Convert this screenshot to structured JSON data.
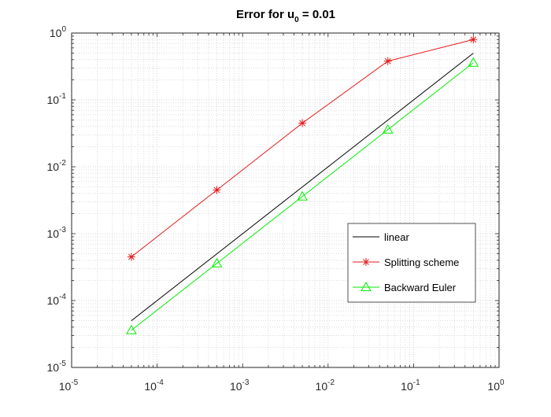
{
  "chart_data": {
    "type": "line",
    "title": {
      "prefix": "Error for u",
      "subscript": "0",
      "suffix": " = 0.01"
    },
    "xlabel": "",
    "ylabel": "",
    "xscale": "log",
    "yscale": "log",
    "xlim": [
      1e-05,
      1
    ],
    "ylim": [
      1e-05,
      1
    ],
    "grid": true,
    "minor_grid": true,
    "x_ticks": [
      {
        "base": "10",
        "exp": "-5",
        "value": 1e-05
      },
      {
        "base": "10",
        "exp": "-4",
        "value": 0.0001
      },
      {
        "base": "10",
        "exp": "-3",
        "value": 0.001
      },
      {
        "base": "10",
        "exp": "-2",
        "value": 0.01
      },
      {
        "base": "10",
        "exp": "-1",
        "value": 0.1
      },
      {
        "base": "10",
        "exp": "0",
        "value": 1
      }
    ],
    "y_ticks": [
      {
        "base": "10",
        "exp": "-5",
        "value": 1e-05
      },
      {
        "base": "10",
        "exp": "-4",
        "value": 0.0001
      },
      {
        "base": "10",
        "exp": "-3",
        "value": 0.001
      },
      {
        "base": "10",
        "exp": "-2",
        "value": 0.01
      },
      {
        "base": "10",
        "exp": "-1",
        "value": 0.1
      },
      {
        "base": "10",
        "exp": "0",
        "value": 1
      }
    ],
    "legend_position": "lower-right",
    "series": [
      {
        "name": "linear",
        "color": "#000000",
        "marker": "none",
        "x": [
          5e-05,
          0.0005,
          0.005,
          0.05,
          0.5
        ],
        "y": [
          5e-05,
          0.0005,
          0.005,
          0.05,
          0.5
        ]
      },
      {
        "name": "Splitting scheme",
        "color": "#e31a1c",
        "marker": "asterisk",
        "x": [
          5e-05,
          0.0005,
          0.005,
          0.05,
          0.5
        ],
        "y": [
          0.00045,
          0.0045,
          0.045,
          0.38,
          0.8
        ]
      },
      {
        "name": "Backward Euler",
        "color": "#00ee00",
        "marker": "triangle",
        "x": [
          5e-05,
          0.0005,
          0.005,
          0.05,
          0.5
        ],
        "y": [
          3.6e-05,
          0.00036,
          0.0036,
          0.036,
          0.36
        ]
      }
    ]
  }
}
